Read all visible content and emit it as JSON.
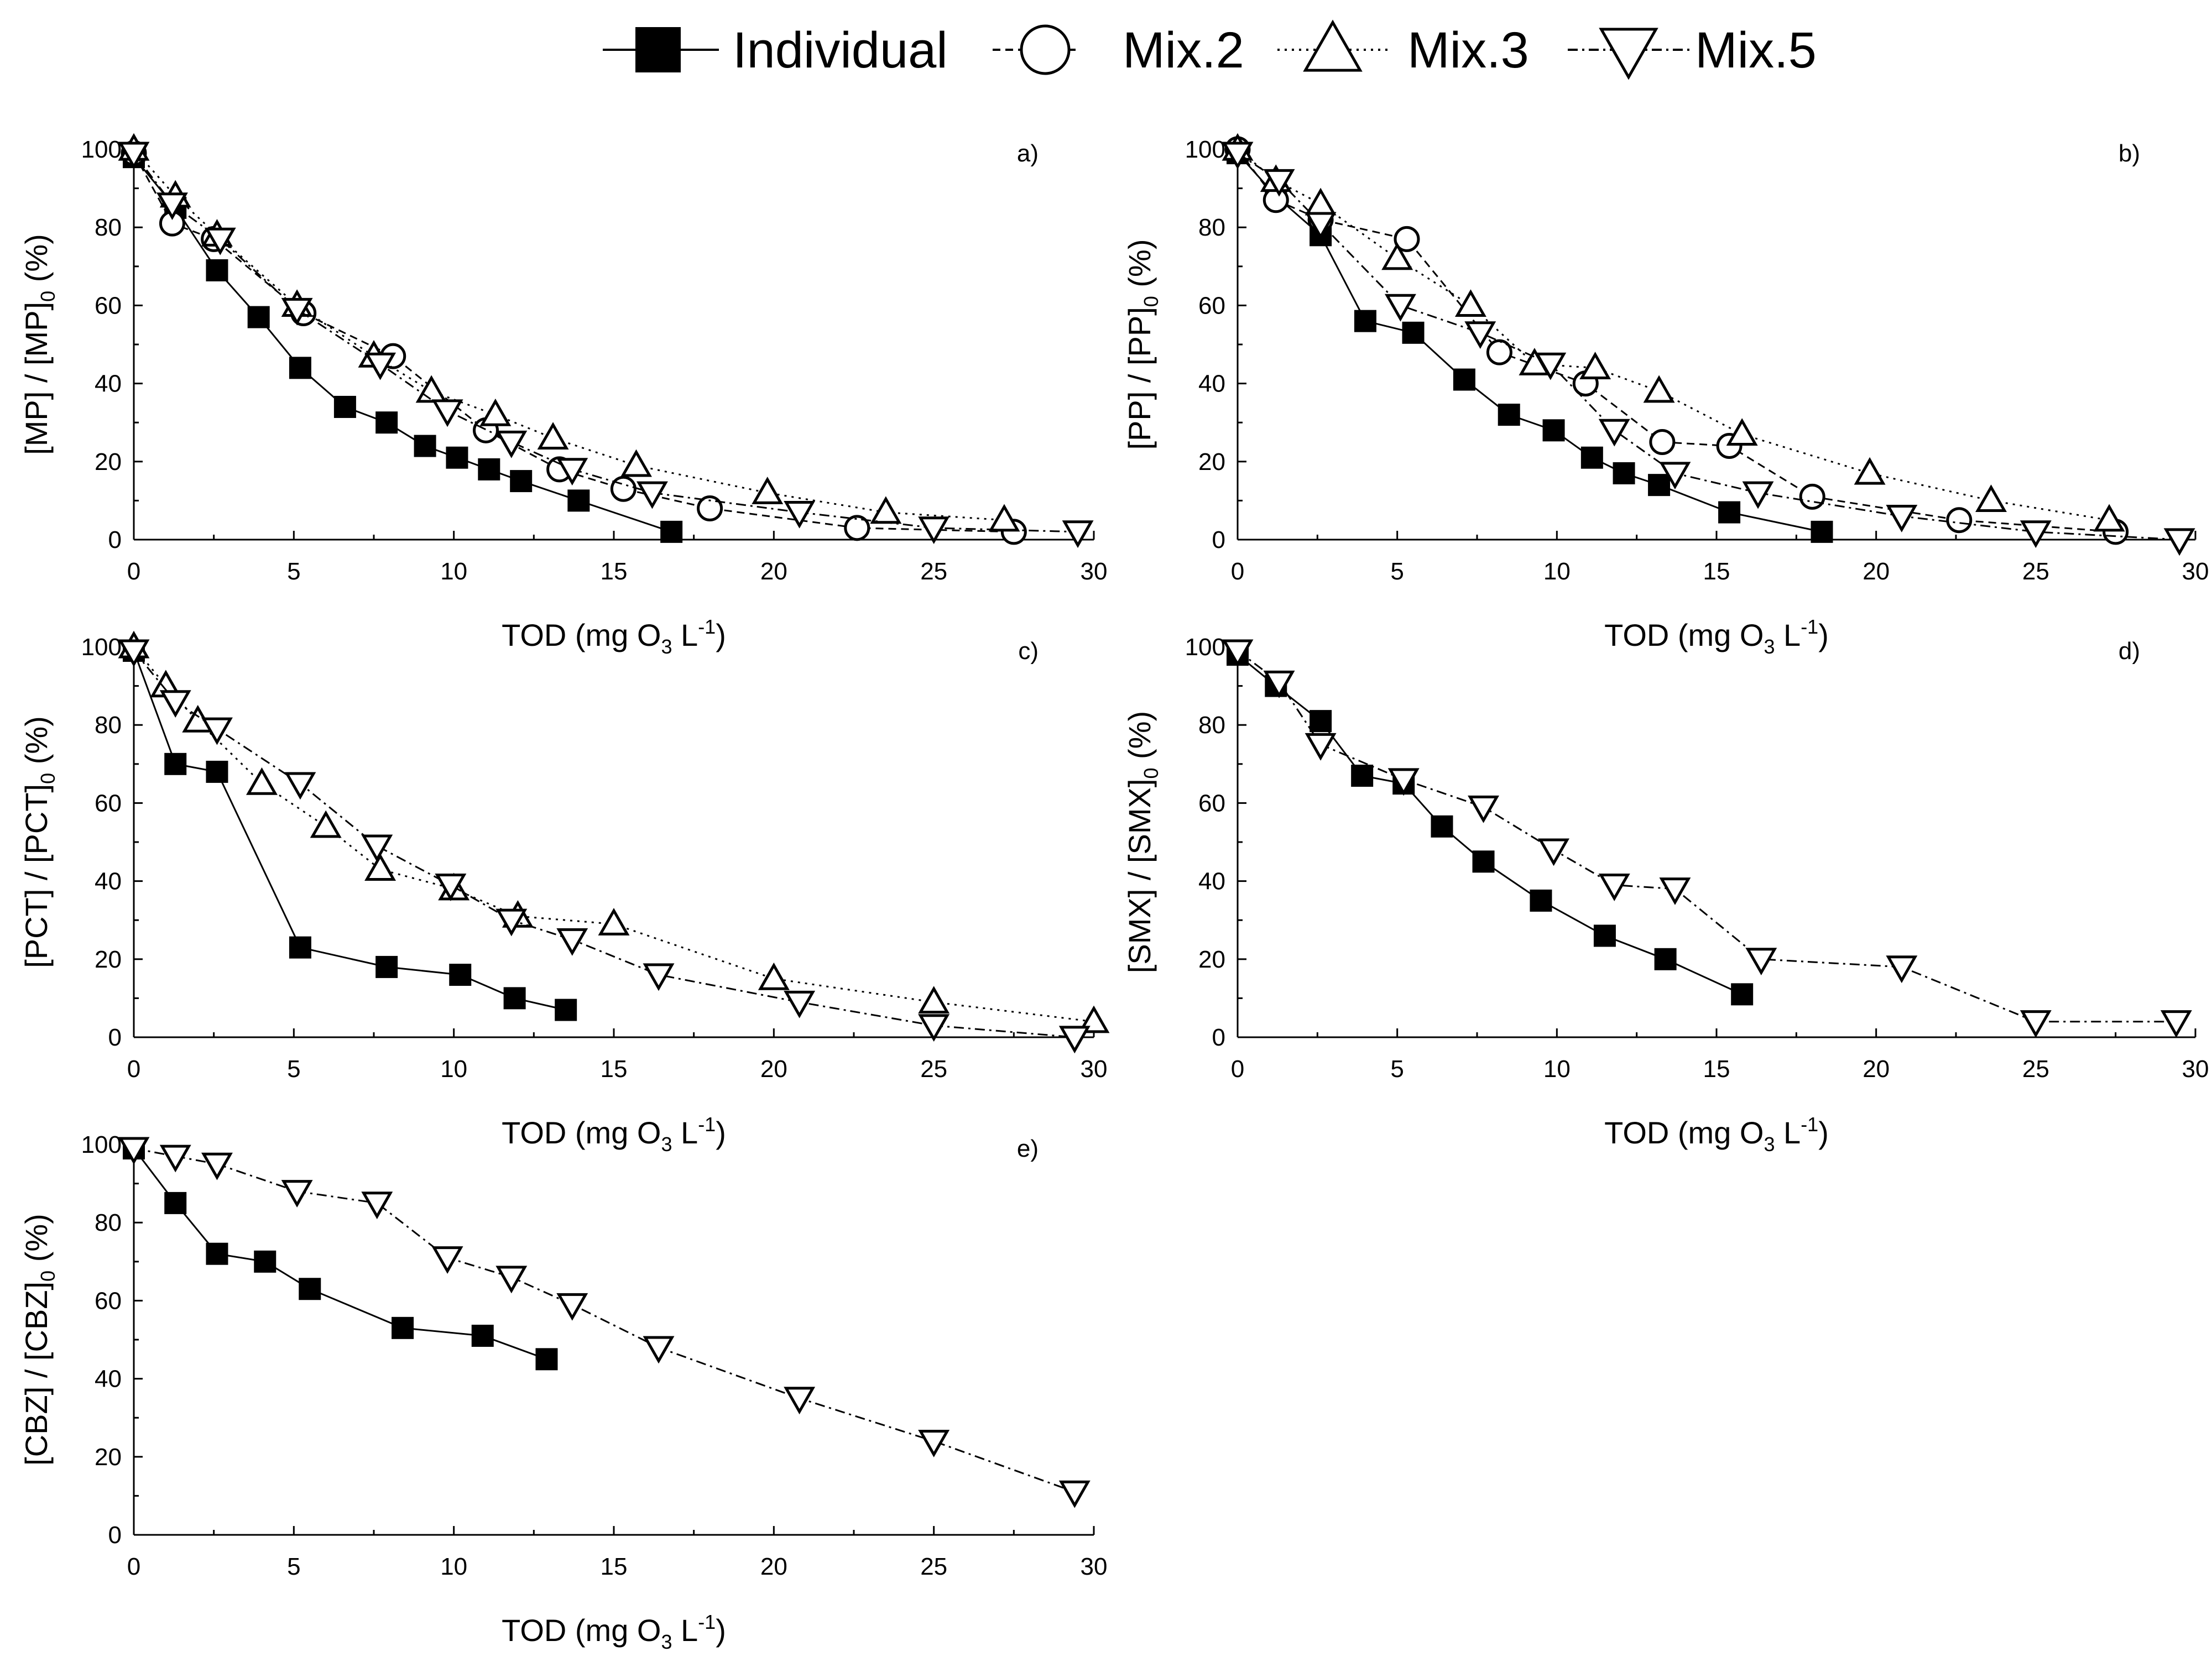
{
  "legend": {
    "items": [
      {
        "key": "individual",
        "label": "Individual",
        "marker": "filled-square",
        "dash": "solid"
      },
      {
        "key": "mix2",
        "label": "Mix.2",
        "marker": "open-circle",
        "dash": "dash"
      },
      {
        "key": "mix3",
        "label": "Mix.3",
        "marker": "open-triangle-up",
        "dash": "dot"
      },
      {
        "key": "mix5",
        "label": "Mix.5",
        "marker": "open-triangle-down",
        "dash": "dash-dot"
      }
    ]
  },
  "chart_data": [
    {
      "id": "a",
      "type": "line",
      "panel_label": "a)",
      "ylabel_main": "[MP] / [MP]",
      "ylabel_sub": "0",
      "ylabel_tail": " (%)",
      "xlabel_pre": "TOD (mg O",
      "xlabel_sub": "3",
      "xlabel_mid": " L",
      "xlabel_sup": "-1",
      "xlabel_post": ")",
      "xlim": [
        0,
        30
      ],
      "ylim": [
        0,
        100
      ],
      "xticks": [
        0,
        5,
        10,
        15,
        20,
        25,
        30
      ],
      "yticks": [
        0,
        20,
        40,
        60,
        80,
        100
      ],
      "series": [
        {
          "name": "Individual",
          "x": [
            0,
            1.3,
            2.6,
            3.9,
            5.2,
            6.6,
            7.9,
            9.1,
            10.1,
            11.1,
            12.1,
            13.9,
            16.8
          ],
          "y": [
            98,
            85,
            69,
            57,
            44,
            34,
            30,
            24,
            21,
            18,
            15,
            10,
            2
          ]
        },
        {
          "name": "Mix.2",
          "x": [
            0,
            1.2,
            2.5,
            5.3,
            8.1,
            11,
            13.3,
            15.3,
            18,
            22.6,
            27.5
          ],
          "y": [
            99,
            81,
            77,
            58,
            47,
            28,
            18,
            13,
            8,
            3,
            2
          ]
        },
        {
          "name": "Mix.3",
          "x": [
            0,
            1.3,
            2.6,
            5.1,
            7.5,
            9.3,
            11.3,
            13.1,
            15.7,
            19.8,
            23.5,
            27.2
          ],
          "y": [
            100,
            88,
            78,
            60,
            47,
            38,
            32,
            26,
            19,
            12,
            7,
            5
          ]
        },
        {
          "name": "Mix.5",
          "x": [
            0,
            1.2,
            2.7,
            5.1,
            7.7,
            9.8,
            11.8,
            13.7,
            16.2,
            20.8,
            25,
            29.5
          ],
          "y": [
            99,
            86,
            77,
            59,
            45,
            33,
            25,
            18,
            12,
            7,
            3,
            2
          ]
        }
      ]
    },
    {
      "id": "b",
      "type": "line",
      "panel_label": "b)",
      "ylabel_main": "[PP] / [PP]",
      "ylabel_sub": "0",
      "ylabel_tail": " (%)",
      "xlabel_pre": "TOD (mg O",
      "xlabel_sub": "3",
      "xlabel_mid": " L",
      "xlabel_sup": "-1",
      "xlabel_post": ")",
      "xlim": [
        0,
        30
      ],
      "ylim": [
        0,
        100
      ],
      "xticks": [
        0,
        5,
        10,
        15,
        20,
        25,
        30
      ],
      "yticks": [
        0,
        20,
        40,
        60,
        80,
        100
      ],
      "series": [
        {
          "name": "Individual",
          "x": [
            0,
            1.2,
            2.6,
            4,
            5.5,
            7.1,
            8.5,
            9.9,
            11.1,
            12.1,
            13.2,
            15.4,
            18.3
          ],
          "y": [
            99,
            88,
            78,
            56,
            53,
            41,
            32,
            28,
            21,
            17,
            14,
            7,
            2
          ]
        },
        {
          "name": "Mix.2",
          "x": [
            0,
            1.2,
            2.6,
            5.3,
            8.2,
            10.9,
            13.3,
            15.4,
            18,
            22.6,
            27.5
          ],
          "y": [
            100,
            87,
            82,
            77,
            48,
            40,
            25,
            24,
            11,
            5,
            2
          ]
        },
        {
          "name": "Mix.3",
          "x": [
            0,
            1.2,
            2.6,
            5,
            7.3,
            9.3,
            11.2,
            13.2,
            15.8,
            19.8,
            23.6,
            27.3
          ],
          "y": [
            100,
            92,
            86,
            72,
            60,
            45,
            44,
            38,
            27,
            17,
            10,
            5
          ]
        },
        {
          "name": "Mix.5",
          "x": [
            0,
            1.3,
            2.6,
            5.1,
            7.6,
            9.8,
            11.8,
            13.7,
            16.3,
            20.8,
            25,
            29.5
          ],
          "y": [
            99,
            92,
            81,
            60,
            53,
            45,
            28,
            17,
            12,
            6,
            2,
            0
          ]
        }
      ]
    },
    {
      "id": "c",
      "type": "line",
      "panel_label": "c)",
      "ylabel_main": "[PCT] / [PCT]",
      "ylabel_sub": "0",
      "ylabel_tail": " (%)",
      "xlabel_pre": "TOD (mg O",
      "xlabel_sub": "3",
      "xlabel_mid": " L",
      "xlabel_sup": "-1",
      "xlabel_post": ")",
      "xlim": [
        0,
        30
      ],
      "ylim": [
        0,
        100
      ],
      "xticks": [
        0,
        5,
        10,
        15,
        20,
        25,
        30
      ],
      "yticks": [
        0,
        20,
        40,
        60,
        80,
        100
      ],
      "series": [
        {
          "name": "Individual",
          "x": [
            0,
            1.3,
            2.6,
            5.2,
            7.9,
            10.2,
            11.9,
            13.5
          ],
          "y": [
            99,
            70,
            68,
            23,
            18,
            16,
            10,
            7
          ]
        },
        {
          "name": "Mix.3",
          "x": [
            0,
            1,
            2,
            4,
            6,
            7.7,
            10,
            12,
            15,
            20,
            25,
            30
          ],
          "y": [
            100,
            90,
            81,
            65,
            54,
            43,
            38,
            31,
            29,
            15,
            9,
            4
          ]
        },
        {
          "name": "Mix.5",
          "x": [
            0,
            1.3,
            2.6,
            5.2,
            7.6,
            9.9,
            11.8,
            13.7,
            16.4,
            20.8,
            25,
            29.4
          ],
          "y": [
            99,
            86,
            79,
            65,
            49,
            39,
            30,
            25,
            16,
            9,
            3,
            0
          ]
        }
      ]
    },
    {
      "id": "d",
      "type": "line",
      "panel_label": "d)",
      "ylabel_main": "[SMX] / [SMX]",
      "ylabel_sub": "0",
      "ylabel_tail": " (%)",
      "xlabel_pre": "TOD (mg O",
      "xlabel_sub": "3",
      "xlabel_mid": " L",
      "xlabel_sup": "-1",
      "xlabel_post": ")",
      "xlim": [
        0,
        30
      ],
      "ylim": [
        0,
        100
      ],
      "xticks": [
        0,
        5,
        10,
        15,
        20,
        25,
        30
      ],
      "yticks": [
        0,
        20,
        40,
        60,
        80,
        100
      ],
      "series": [
        {
          "name": "Individual",
          "x": [
            0,
            1.2,
            2.6,
            3.9,
            5.2,
            6.4,
            7.7,
            9.5,
            11.5,
            13.4,
            15.8
          ],
          "y": [
            98,
            90,
            81,
            67,
            65,
            54,
            45,
            35,
            26,
            20,
            11
          ]
        },
        {
          "name": "Mix.5",
          "x": [
            0,
            1.3,
            2.6,
            5.2,
            7.7,
            9.9,
            11.8,
            13.7,
            16.4,
            20.8,
            25,
            29.4
          ],
          "y": [
            99,
            91,
            75,
            66,
            59,
            48,
            39,
            38,
            20,
            18,
            4,
            4
          ]
        }
      ]
    },
    {
      "id": "e",
      "type": "line",
      "panel_label": "e)",
      "ylabel_main": "[CBZ] / [CBZ]",
      "ylabel_sub": "0",
      "ylabel_tail": " (%)",
      "xlabel_pre": "TOD (mg O",
      "xlabel_sub": "3",
      "xlabel_mid": " L",
      "xlabel_sup": "-1",
      "xlabel_post": ")",
      "xlim": [
        0,
        30
      ],
      "ylim": [
        0,
        100
      ],
      "xticks": [
        0,
        5,
        10,
        15,
        20,
        25,
        30
      ],
      "yticks": [
        0,
        20,
        40,
        60,
        80,
        100
      ],
      "series": [
        {
          "name": "Individual",
          "x": [
            0,
            1.3,
            2.6,
            4.1,
            5.5,
            8.4,
            10.9,
            12.9
          ],
          "y": [
            99,
            85,
            72,
            70,
            63,
            53,
            51,
            45
          ]
        },
        {
          "name": "Mix.5",
          "x": [
            0,
            1.3,
            2.6,
            5.1,
            7.6,
            9.8,
            11.8,
            13.7,
            16.4,
            20.8,
            25,
            29.4
          ],
          "y": [
            99,
            97,
            95,
            88,
            85,
            71,
            66,
            59,
            48,
            35,
            24,
            11
          ]
        }
      ]
    }
  ]
}
